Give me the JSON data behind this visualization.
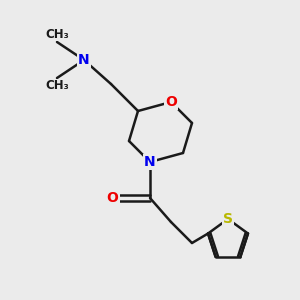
{
  "background_color": "#ebebeb",
  "bond_color": "#1a1a1a",
  "bond_width": 1.8,
  "atom_colors": {
    "N": "#0000ee",
    "O": "#ee0000",
    "S": "#b8b800",
    "C": "#1a1a1a"
  },
  "figsize": [
    3.0,
    3.0
  ],
  "dpi": 100,
  "xlim": [
    0,
    10
  ],
  "ylim": [
    0,
    10
  ]
}
